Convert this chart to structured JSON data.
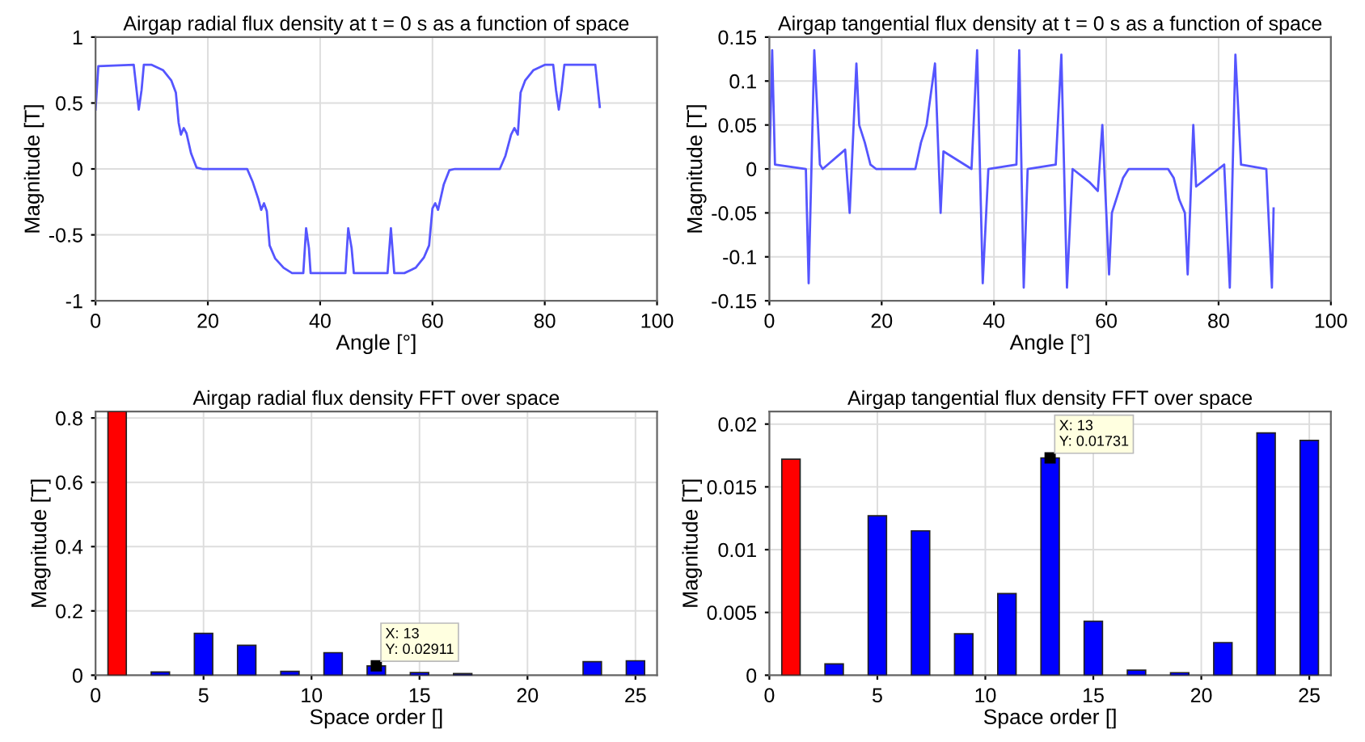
{
  "chart_data": [
    {
      "type": "line",
      "title": "Airgap radial flux density at t = 0 s as a function of space",
      "xlabel": "Angle [°]",
      "ylabel": "Magnitude [T]",
      "xlim": [
        0,
        100
      ],
      "xticks": [
        0,
        20,
        40,
        60,
        80,
        100
      ],
      "ylim": [
        -1,
        1
      ],
      "yticks": [
        -1,
        -0.5,
        0,
        0.5,
        1
      ],
      "grid": true,
      "series": [
        {
          "color": "#5555ff",
          "x": [
            0,
            0.5,
            6.8,
            7.3,
            7.7,
            8.2,
            8.6,
            10,
            12,
            13.5,
            14.3,
            14.8,
            15.2,
            15.7,
            16.2,
            17,
            18,
            19,
            27,
            28,
            29,
            29.5,
            30,
            30.5,
            31,
            32,
            33.5,
            35,
            37,
            37.5,
            38,
            38.3,
            44.5,
            45,
            45.6,
            46,
            52,
            52.6,
            53.2,
            55,
            57,
            58.5,
            59.4,
            60,
            60.5,
            61,
            62,
            63,
            64,
            72,
            73,
            74,
            74.6,
            75.2,
            75.7,
            76.5,
            78,
            80,
            81.5,
            82,
            82.5,
            83,
            83.5,
            89,
            89.8
          ],
          "values": [
            0.45,
            0.78,
            0.79,
            0.6,
            0.45,
            0.6,
            0.79,
            0.79,
            0.75,
            0.67,
            0.58,
            0.35,
            0.26,
            0.31,
            0.27,
            0.12,
            0.01,
            0,
            0,
            -0.1,
            -0.23,
            -0.31,
            -0.26,
            -0.32,
            -0.58,
            -0.68,
            -0.75,
            -0.79,
            -0.79,
            -0.45,
            -0.6,
            -0.79,
            -0.79,
            -0.45,
            -0.6,
            -0.79,
            -0.79,
            -0.45,
            -0.79,
            -0.79,
            -0.75,
            -0.67,
            -0.58,
            -0.3,
            -0.26,
            -0.31,
            -0.12,
            -0.01,
            0,
            0,
            0.1,
            0.26,
            0.31,
            0.26,
            0.58,
            0.67,
            0.75,
            0.79,
            0.79,
            0.6,
            0.45,
            0.6,
            0.79,
            0.79,
            0.47
          ]
        }
      ]
    },
    {
      "type": "line",
      "title": "Airgap tangential flux density at t = 0 s as a function of space",
      "xlabel": "Angle [°]",
      "ylabel": "Magnitude [T]",
      "xlim": [
        0,
        100
      ],
      "xticks": [
        0,
        20,
        40,
        60,
        80,
        100
      ],
      "ylim": [
        -0.15,
        0.15
      ],
      "yticks": [
        -0.15,
        -0.1,
        -0.05,
        0,
        0.05,
        0.1,
        0.15
      ],
      "grid": true,
      "series": [
        {
          "color": "#5555ff",
          "x": [
            0,
            0.5,
            1,
            6.5,
            7,
            8,
            9,
            9.5,
            13.5,
            14.3,
            15.5,
            16,
            17,
            18,
            19,
            26,
            27,
            28,
            29.5,
            30.5,
            31,
            36,
            37,
            38,
            39,
            44,
            44.5,
            45.3,
            46,
            51,
            52,
            53,
            54,
            57,
            58.5,
            59.3,
            60.5,
            61,
            62,
            63,
            64,
            71,
            72,
            73,
            74,
            74.5,
            75.5,
            76,
            78,
            80,
            81,
            82,
            83,
            84,
            88.5,
            89.5,
            89.8
          ],
          "values": [
            0,
            0.135,
            0.005,
            0,
            -0.13,
            0.135,
            0.005,
            0,
            0.022,
            -0.05,
            0.12,
            0.05,
            0.03,
            0.005,
            0,
            0,
            0.03,
            0.05,
            0.12,
            -0.05,
            0.02,
            0,
            0.135,
            -0.13,
            0,
            0.005,
            0.135,
            -0.135,
            0,
            0.005,
            0.13,
            -0.135,
            0,
            -0.015,
            -0.025,
            0.05,
            -0.12,
            -0.05,
            -0.03,
            -0.01,
            0,
            0,
            -0.01,
            -0.035,
            -0.05,
            -0.12,
            0.05,
            -0.02,
            -0.01,
            0,
            0.005,
            -0.135,
            0.13,
            0.005,
            0,
            -0.135,
            -0.045
          ]
        }
      ]
    },
    {
      "type": "bar",
      "title": "Airgap radial flux density FFT over space",
      "xlabel": "Space order []",
      "ylabel": "Magnitude [T]",
      "xlim": [
        0,
        26
      ],
      "xticks": [
        0,
        5,
        10,
        15,
        20,
        25
      ],
      "ylim": [
        0,
        0.82
      ],
      "yticks": [
        0,
        0.2,
        0.4,
        0.6,
        0.8
      ],
      "grid": true,
      "x": [
        1,
        3,
        5,
        7,
        9,
        11,
        13,
        15,
        17,
        19,
        21,
        23,
        25
      ],
      "values": [
        0.82,
        0.01,
        0.13,
        0.093,
        0.012,
        0.07,
        0.02911,
        0.008,
        0.005,
        null,
        null,
        0.042,
        0.045
      ],
      "colors": [
        "#ff0000",
        "#0000ff",
        "#0000ff",
        "#0000ff",
        "#0000ff",
        "#0000ff",
        "#0000ff",
        "#0000ff",
        "#0000ff",
        "#0000ff",
        "#0000ff",
        "#0000ff",
        "#0000ff"
      ],
      "annotations": [
        {
          "text": "X: 13\nY: 0.02911",
          "x": 13,
          "y": 0.02911
        }
      ]
    },
    {
      "type": "bar",
      "title": "Airgap tangential flux density FFT over space",
      "xlabel": "Space order []",
      "ylabel": "Magnitude [T]",
      "xlim": [
        0,
        26
      ],
      "xticks": [
        0,
        5,
        10,
        15,
        20,
        25
      ],
      "ylim": [
        0,
        0.021
      ],
      "yticks": [
        0,
        0.005,
        0.01,
        0.015,
        0.02
      ],
      "grid": true,
      "x": [
        1,
        3,
        5,
        7,
        9,
        11,
        13,
        15,
        17,
        19,
        21,
        23,
        25
      ],
      "values": [
        0.0172,
        0.0009,
        0.0127,
        0.0115,
        0.0033,
        0.0065,
        0.01731,
        0.0043,
        0.0004,
        0.0002,
        0.0026,
        0.0193,
        0.0187
      ],
      "colors": [
        "#ff0000",
        "#0000ff",
        "#0000ff",
        "#0000ff",
        "#0000ff",
        "#0000ff",
        "#0000ff",
        "#0000ff",
        "#0000ff",
        "#0000ff",
        "#0000ff",
        "#0000ff",
        "#0000ff"
      ],
      "annotations": [
        {
          "text": "X: 13\nY: 0.01731",
          "x": 13,
          "y": 0.01731
        }
      ]
    }
  ]
}
